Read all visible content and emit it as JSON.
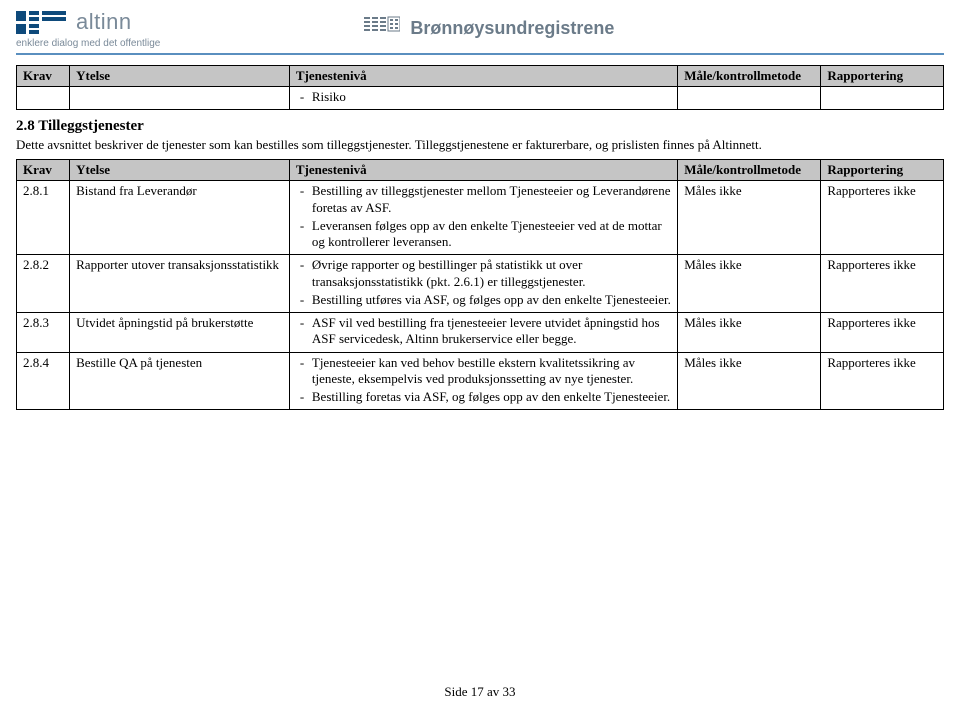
{
  "header": {
    "altinn_brand": "altinn",
    "altinn_tagline": "enklere dialog med det offentlige",
    "br_brand": "Brønnøysundregistrene"
  },
  "table1": {
    "columns": [
      "Krav",
      "Ytelse",
      "Tjenestenivå",
      "Måle/kontrollmetode",
      "Rapportering"
    ],
    "rows": [
      {
        "krav": "",
        "ytelse": "",
        "tjen": [
          "Risiko"
        ],
        "male": "",
        "rapp": ""
      }
    ]
  },
  "section": {
    "heading": "2.8  Tilleggstjenester",
    "intro": "Dette avsnittet beskriver de tjenester som kan bestilles som tilleggstjenester. Tilleggstjenestene er fakturerbare, og prislisten finnes på Altinnett."
  },
  "table2": {
    "columns": [
      "Krav",
      "Ytelse",
      "Tjenestenivå",
      "Måle/kontrollmetode",
      "Rapportering"
    ],
    "rows": [
      {
        "krav": "2.8.1",
        "ytelse": "Bistand fra Leverandør",
        "tjen": [
          "Bestilling av tilleggstjenester mellom Tjenesteeier og Leverandørene foretas av ASF.",
          "Leveransen følges opp av den enkelte Tjenesteeier ved at de mottar og kontrollerer leveransen."
        ],
        "male": "Måles ikke",
        "rapp": "Rapporteres ikke"
      },
      {
        "krav": "2.8.2",
        "ytelse": "Rapporter utover transaksjonsstatistikk",
        "tjen": [
          "Øvrige rapporter og bestillinger på statistikk ut over transaksjonsstatistikk (pkt. 2.6.1) er tilleggstjenester.",
          "Bestilling utføres via ASF, og følges opp av den enkelte Tjenesteeier."
        ],
        "male": "Måles ikke",
        "rapp": "Rapporteres ikke"
      },
      {
        "krav": "2.8.3",
        "ytelse": "Utvidet åpningstid på brukerstøtte",
        "tjen": [
          "ASF vil ved bestilling fra tjenesteeier levere utvidet åpningstid hos ASF servicedesk, Altinn brukerservice eller begge."
        ],
        "male": "Måles ikke",
        "rapp": "Rapporteres ikke"
      },
      {
        "krav": "2.8.4",
        "ytelse": "Bestille QA på tjenesten",
        "tjen": [
          "Tjenesteeier kan ved behov bestille ekstern kvalitetssikring av tjeneste, eksempelvis ved produksjonssetting av nye tjenester.",
          "Bestilling foretas via ASF, og følges opp av den enkelte Tjenesteeier."
        ],
        "male": "Måles ikke",
        "rapp": "Rapporteres ikke"
      }
    ]
  },
  "footer": "Side 17 av 33",
  "colors": {
    "header_rule": "#5a8fbf",
    "th_bg": "#c5c5c5",
    "logo_gray": "#7a8a99",
    "altinn_accent": "#0e4a7b"
  }
}
